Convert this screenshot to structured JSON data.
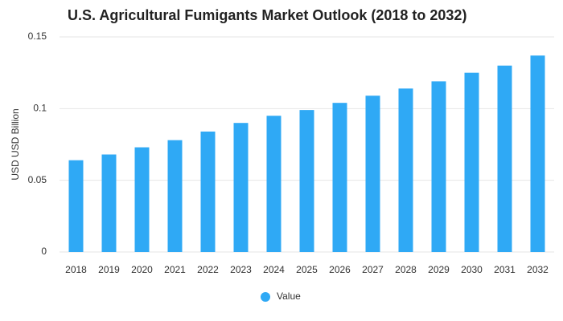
{
  "chart_data": {
    "type": "bar",
    "title": "U.S. Agricultural Fumigants Market Outlook (2018 to 2032)",
    "y_label": "USD USD Billion",
    "categories": [
      "2018",
      "2019",
      "2020",
      "2021",
      "2022",
      "2023",
      "2024",
      "2025",
      "2026",
      "2027",
      "2028",
      "2029",
      "2030",
      "2031",
      "2032"
    ],
    "series": [
      {
        "name": "Value",
        "color": "#2fa9f5",
        "values": [
          0.064,
          0.068,
          0.073,
          0.078,
          0.084,
          0.09,
          0.095,
          0.099,
          0.104,
          0.109,
          0.114,
          0.119,
          0.125,
          0.13,
          0.137
        ]
      }
    ],
    "ylim": [
      0,
      0.15
    ],
    "yticks": [
      0,
      0.05,
      0.1,
      0.15
    ],
    "grid": true,
    "legend": "bottom"
  }
}
